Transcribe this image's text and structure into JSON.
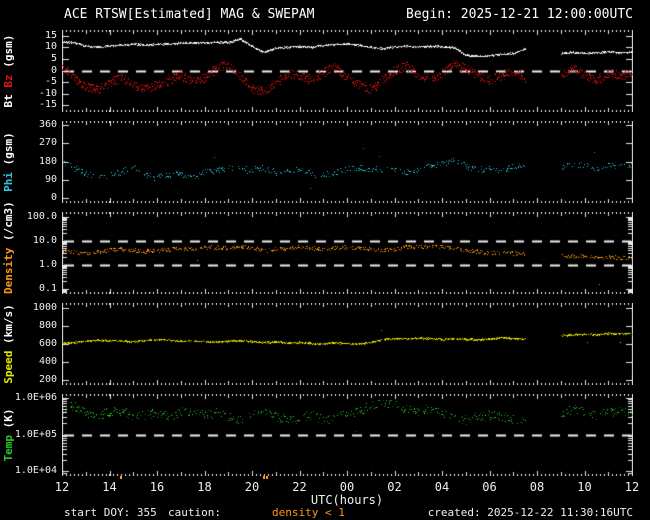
{
  "title": "ACE RTSW[Estimated] MAG & SWEPAM",
  "begin_label": "Begin: 2025-12-21 12:00:00UTC",
  "footer": {
    "start_doy": "start DOY: 355",
    "caution_label": "caution:",
    "caution_value": "density < 1",
    "created": "created: 2025-12-22 11:30:16UTC"
  },
  "x_axis": {
    "label": "UTC(hours)",
    "tick_labels": [
      "12",
      "14",
      "16",
      "18",
      "20",
      "22",
      "00",
      "02",
      "04",
      "06",
      "08",
      "10",
      "12"
    ],
    "caution_mark_hours": [
      14.45,
      20.45,
      20.6
    ]
  },
  "colors": {
    "background": "#000000",
    "frame": "#e8e8e8",
    "dashed_line": "#f0f0f0",
    "text": "#ffffff",
    "bt": "#ffffff",
    "bz": "#e01212",
    "phi": "#35c8dc",
    "density": "#ff9714",
    "speed": "#e8e800",
    "temp": "#28c828"
  },
  "chart_data": {
    "type": "scatter",
    "x_range": [
      12,
      36
    ],
    "grid": false,
    "legend": "none",
    "x_hours": [
      12,
      12.5,
      13,
      13.5,
      14,
      14.5,
      15,
      15.5,
      16,
      16.5,
      17,
      17.5,
      18,
      18.5,
      19,
      19.5,
      20,
      20.5,
      21,
      21.5,
      22,
      22.5,
      23,
      23.5,
      24,
      24.5,
      25,
      25.5,
      26,
      26.5,
      27,
      27.5,
      28,
      28.5,
      29,
      29.5,
      30,
      30.5,
      31,
      31.5,
      32,
      32.5,
      33,
      33.5,
      34,
      34.5,
      35,
      35.5,
      36
    ],
    "panels": [
      {
        "name": "bt-bz",
        "scale": "linear",
        "ylim": [
          -17.5,
          17.5
        ],
        "yticks": [
          {
            "v": 15,
            "label": "15"
          },
          {
            "v": 10,
            "label": "10"
          },
          {
            "v": 5,
            "label": "5"
          },
          {
            "v": 0,
            "label": "0"
          },
          {
            "v": -5,
            "label": "-5"
          },
          {
            "v": -10,
            "label": "-10"
          },
          {
            "v": -15,
            "label": "-15"
          }
        ],
        "ref_lines": [
          0
        ],
        "ylabel_parts": [
          {
            "text": "Bt",
            "color": "#ffffff"
          },
          {
            "text": "Bz",
            "color": "#e01212"
          },
          {
            "text": "(gsm)",
            "color": "#ffffff"
          }
        ],
        "series": [
          {
            "name": "Bt",
            "color": "#ffffff",
            "color2": "#bdbdbd",
            "jitter": 0.35,
            "density": 1,
            "multi": 1,
            "outlier_p": 0,
            "outlier_mag": 0,
            "seed": 11,
            "y": [
              12.5,
              12.2,
              10.8,
              10.2,
              10.8,
              11.2,
              11.6,
              11.2,
              11.6,
              11.5,
              12,
              12.2,
              12,
              12.4,
              12.2,
              13.8,
              10.5,
              8,
              9.8,
              10.2,
              10.6,
              10.2,
              11,
              11.4,
              11.8,
              11,
              10.2,
              9.6,
              10.4,
              10.6,
              10.4,
              10.6,
              10.5,
              10,
              6.8,
              6.2,
              6.6,
              7.2,
              7.6,
              9.4,
              null,
              null,
              7.6,
              8,
              7.6,
              7.8,
              8.2,
              7.8,
              8
            ]
          },
          {
            "name": "Bz",
            "color": "#e01212",
            "color2": "#8a0f0f",
            "jitter": 2.0,
            "density": 0.6,
            "multi": 2,
            "outlier_p": 0.004,
            "outlier_mag": 4,
            "seed": 22,
            "y": [
              2,
              -3,
              -7,
              -8,
              -5,
              -3,
              -6,
              -8,
              -6,
              -4,
              -2,
              -5,
              -3,
              1,
              3,
              -2,
              -8,
              -9,
              -5,
              -1,
              -2,
              -4,
              -1,
              2,
              -3,
              -6,
              -8,
              -4,
              0,
              2,
              -2,
              -4,
              -1,
              3,
              1,
              -2,
              -4,
              -2,
              0,
              -3,
              null,
              null,
              -2,
              1,
              -2,
              -4,
              -1,
              -2,
              -1
            ]
          }
        ]
      },
      {
        "name": "phi",
        "scale": "linear",
        "ylim": [
          -18,
          378
        ],
        "yticks": [
          {
            "v": 360,
            "label": "360"
          },
          {
            "v": 270,
            "label": "270"
          },
          {
            "v": 180,
            "label": "180"
          },
          {
            "v": 90,
            "label": "90"
          },
          {
            "v": 0,
            "label": "0"
          }
        ],
        "ref_lines": [],
        "ylabel_parts": [
          {
            "text": "Phi",
            "color": "#35c8dc"
          },
          {
            "text": "(gsm)",
            "color": "#ffffff"
          }
        ],
        "series": [
          {
            "name": "Phi",
            "color": "#35c8dc",
            "color2": "#1d8da0",
            "jitter": 14,
            "density": 0.4,
            "multi": 1,
            "outlier_p": 0.012,
            "outlier_mag": 95,
            "seed": 33,
            "y": [
              180,
              150,
              122,
              110,
              115,
              130,
              160,
              120,
              110,
              115,
              120,
              100,
              130,
              140,
              150,
              145,
              140,
              150,
              130,
              135,
              140,
              120,
              112,
              130,
              145,
              150,
              145,
              140,
              145,
              130,
              140,
              160,
              170,
              185,
              160,
              140,
              150,
              135,
              155,
              160,
              null,
              null,
              150,
              170,
              160,
              145,
              165,
              155,
              160
            ]
          }
        ]
      },
      {
        "name": "density",
        "scale": "log",
        "ylim": [
          0.065,
          154
        ],
        "yticks": [
          {
            "v": 100,
            "label": "100.0"
          },
          {
            "v": 10,
            "label": "10.0"
          },
          {
            "v": 1,
            "label": "1.0"
          },
          {
            "v": 0.1,
            "label": "0.1"
          }
        ],
        "ref_lines": [
          10,
          1
        ],
        "ylabel_parts": [
          {
            "text": "Density",
            "color": "#ff9714"
          },
          {
            "text": "(/cm3)",
            "color": "#ffffff"
          }
        ],
        "series": [
          {
            "name": "Density",
            "color": "#ff9714",
            "color2": "#b36708",
            "jitter": 0.08,
            "density": 0.55,
            "multi": 1,
            "outlier_p": 0.006,
            "outlier_mag": 0.8,
            "seed": 44,
            "y": [
              4,
              3.5,
              3,
              3.5,
              4.2,
              4.5,
              4,
              3.6,
              4,
              4.5,
              5,
              4.5,
              5,
              5.5,
              5,
              6,
              5,
              4,
              4.5,
              5,
              5.5,
              5,
              4.5,
              5,
              5.5,
              5,
              4.5,
              4,
              4.5,
              5.5,
              6,
              5.5,
              6,
              5,
              4,
              3.5,
              3,
              3.5,
              3,
              2.8,
              null,
              null,
              2.5,
              2.2,
              2.5,
              2,
              2.2,
              1.9,
              2
            ]
          }
        ]
      },
      {
        "name": "speed",
        "scale": "linear",
        "ylim": [
          150,
          1050
        ],
        "yticks": [
          {
            "v": 1000,
            "label": "1000"
          },
          {
            "v": 800,
            "label": "800"
          },
          {
            "v": 600,
            "label": "600"
          },
          {
            "v": 400,
            "label": "400"
          },
          {
            "v": 200,
            "label": "200"
          }
        ],
        "ref_lines": [],
        "ylabel_parts": [
          {
            "text": "Speed",
            "color": "#e8e800"
          },
          {
            "text": "(km/s)",
            "color": "#ffffff"
          }
        ],
        "series": [
          {
            "name": "Speed",
            "color": "#e8e800",
            "color2": "#9a9a05",
            "jitter": 9,
            "density": 0.85,
            "multi": 1,
            "outlier_p": 0.002,
            "outlier_mag": 130,
            "seed": 55,
            "y": [
              610,
              615,
              630,
              640,
              635,
              630,
              625,
              640,
              650,
              640,
              630,
              635,
              625,
              620,
              630,
              635,
              625,
              615,
              620,
              610,
              615,
              605,
              600,
              610,
              605,
              595,
              615,
              650,
              660,
              655,
              665,
              660,
              650,
              655,
              650,
              645,
              655,
              670,
              660,
              650,
              null,
              null,
              690,
              700,
              710,
              700,
              720,
              710,
              715
            ]
          }
        ]
      },
      {
        "name": "temp",
        "scale": "log",
        "ylim": [
          8000,
          1250000
        ],
        "yticks": [
          {
            "v": 1000000,
            "label": "1.0E+06"
          },
          {
            "v": 100000,
            "label": "1.0E+05"
          },
          {
            "v": 10000,
            "label": "1.0E+04"
          }
        ],
        "ref_lines": [
          100000
        ],
        "ylabel_parts": [
          {
            "text": "Temp",
            "color": "#28c828"
          },
          {
            "text": "(K)",
            "color": "#ffffff"
          }
        ],
        "series": [
          {
            "name": "Temp",
            "color": "#28c828",
            "color2": "#167a16",
            "jitter": 0.13,
            "density": 0.5,
            "multi": 1,
            "outlier_p": 0.004,
            "outlier_mag": 0.3,
            "seed": 66,
            "y": [
              500000,
              650000,
              400000,
              350000,
              400000,
              450000,
              300000,
              350000,
              400000,
              300000,
              450000,
              400000,
              350000,
              400000,
              300000,
              250000,
              350000,
              400000,
              300000,
              250000,
              300000,
              350000,
              250000,
              300000,
              350000,
              450000,
              600000,
              700000,
              650000,
              500000,
              450000,
              500000,
              400000,
              300000,
              250000,
              300000,
              350000,
              300000,
              250000,
              300000,
              null,
              null,
              400000,
              500000,
              450000,
              350000,
              400000,
              450000,
              400000
            ]
          }
        ]
      }
    ]
  }
}
